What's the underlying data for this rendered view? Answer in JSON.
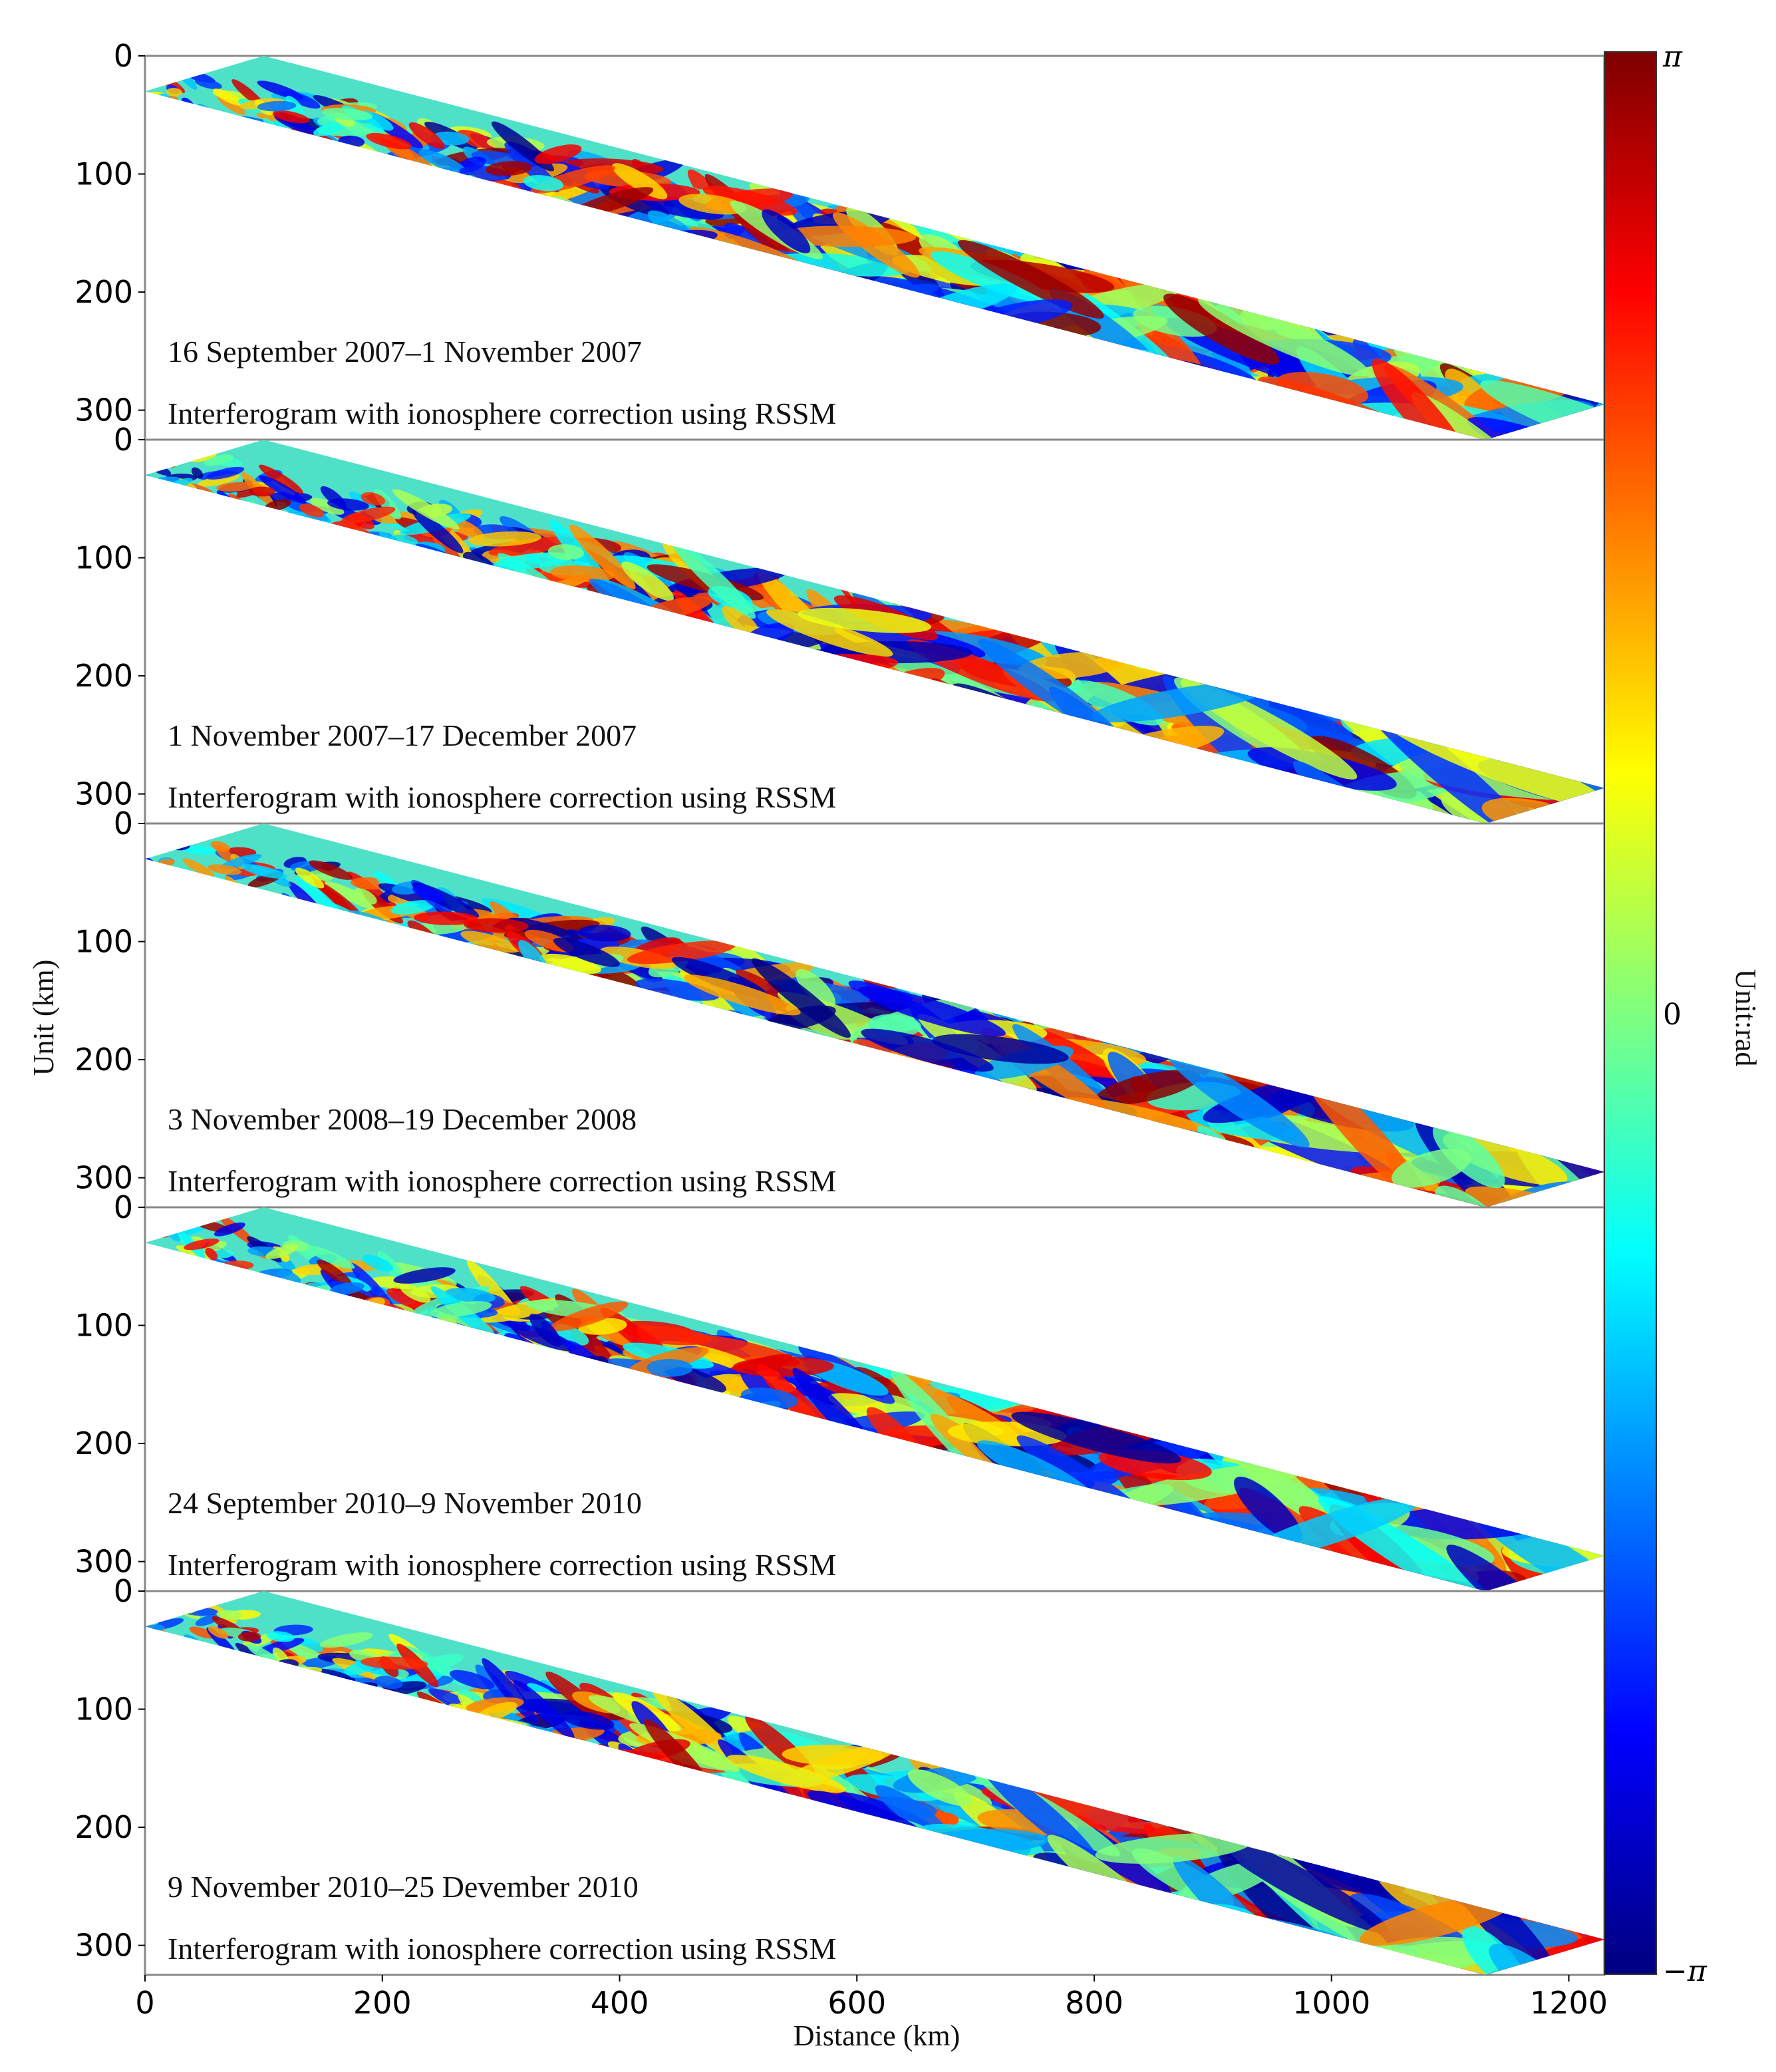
{
  "chart_data": {
    "type": "heatmap",
    "description_kind": "stacked wrapped-phase interferograms",
    "xlabel": "Distance (km)",
    "ylabel": "Unit (km)",
    "xlim": [
      0,
      1230
    ],
    "ylim": [
      325,
      0
    ],
    "xticks": [
      0,
      200,
      400,
      600,
      800,
      1000,
      1200
    ],
    "yticks": [
      0,
      100,
      200,
      300
    ],
    "colorbar": {
      "label": "Unit:rad",
      "colormap": "jet",
      "range_min_label": "−π",
      "mid_label": "0",
      "range_max_label": "π",
      "colors": [
        "#00007f",
        "#0000ff",
        "#007fff",
        "#00ffff",
        "#7fff7f",
        "#ffff00",
        "#ff7f00",
        "#ff0000",
        "#7f0000"
      ]
    },
    "strip_extent_km": {
      "top_edge": [
        [
          100,
          0
        ],
        [
          1230,
          295
        ]
      ],
      "bottom_edge": [
        [
          0,
          30
        ],
        [
          1130,
          325
        ]
      ]
    },
    "panels": [
      {
        "date_range": "16 September 2007–1 November 2007",
        "description": "Interferogram with ionosphere correction using RSSM"
      },
      {
        "date_range": "1 November 2007–17 December 2007",
        "description": "Interferogram with ionosphere correction using RSSM"
      },
      {
        "date_range": "3 November 2008–19 December 2008",
        "description": "Interferogram with ionosphere correction using RSSM"
      },
      {
        "date_range": "24 September 2010–9 November 2010",
        "description": "Interferogram with ionosphere correction using RSSM"
      },
      {
        "date_range": "9 November 2010–25 Devember 2010",
        "description": "Interferogram with ionosphere correction using RSSM"
      }
    ]
  }
}
